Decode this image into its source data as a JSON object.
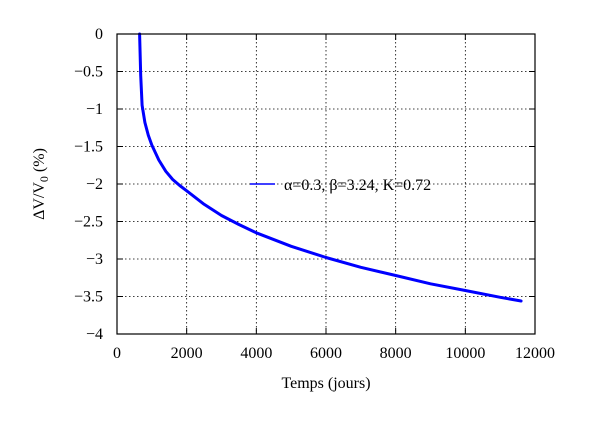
{
  "chart_data": {
    "type": "line",
    "xlabel": "Temps (jours)",
    "ylabel": {
      "prefix": "ΔV/V",
      "subscript": "0",
      "suffix": " (%)"
    },
    "xlim": [
      0,
      12000
    ],
    "ylim": [
      -4,
      0
    ],
    "xticks": [
      0,
      2000,
      4000,
      6000,
      8000,
      10000,
      12000
    ],
    "yticks": [
      0,
      -0.5,
      -1,
      -1.5,
      -2,
      -2.5,
      -3,
      -3.5,
      -4
    ],
    "xtick_labels": [
      "0",
      "2000",
      "4000",
      "6000",
      "8000",
      "10000",
      "12000"
    ],
    "ytick_labels": [
      "0",
      "−0.5",
      "−1",
      "−1.5",
      "−2",
      "−2.5",
      "−3",
      "−3.5",
      "−4"
    ],
    "grid": true,
    "grid_style": "dotted",
    "legend_position": "center-right",
    "series": [
      {
        "name": "α=0.3, β=3.24, K=0.72",
        "color": "#0000ff",
        "x": [
          650,
          680,
          720,
          800,
          900,
          1000,
          1200,
          1400,
          1600,
          1800,
          2000,
          2500,
          3000,
          3500,
          4000,
          5000,
          6000,
          7000,
          8000,
          9000,
          10000,
          11000,
          11600
        ],
        "y": [
          0,
          -0.55,
          -0.95,
          -1.18,
          -1.35,
          -1.48,
          -1.68,
          -1.83,
          -1.94,
          -2.02,
          -2.09,
          -2.27,
          -2.42,
          -2.54,
          -2.65,
          -2.83,
          -2.98,
          -3.11,
          -3.22,
          -3.33,
          -3.42,
          -3.51,
          -3.56
        ]
      }
    ]
  }
}
